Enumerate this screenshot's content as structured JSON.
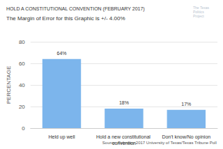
{
  "chart_data": {
    "type": "bar",
    "title": "HOLD A CONSTITUTIONAL CONVENTION (FEBRUARY 2017)",
    "subtitle": "The Margin of Error for this Graphic is +/- 4.00%",
    "y_label": "PERCENTAGE",
    "categories": [
      "Held up well",
      "Hold a new constitutional convention",
      "Don't know/No opinion"
    ],
    "values": [
      64,
      18,
      17
    ],
    "value_labels": [
      "64%",
      "18%",
      "17%"
    ],
    "color": "#7cb5ec",
    "ylim": [
      0,
      80
    ],
    "yticks": [
      0,
      20,
      40,
      60,
      80
    ],
    "grid": true,
    "data_labels": true,
    "source": "Source: February 2017 University of Texas/Texas Tribune Poll",
    "logo_text": "The Texas Politics Project"
  }
}
